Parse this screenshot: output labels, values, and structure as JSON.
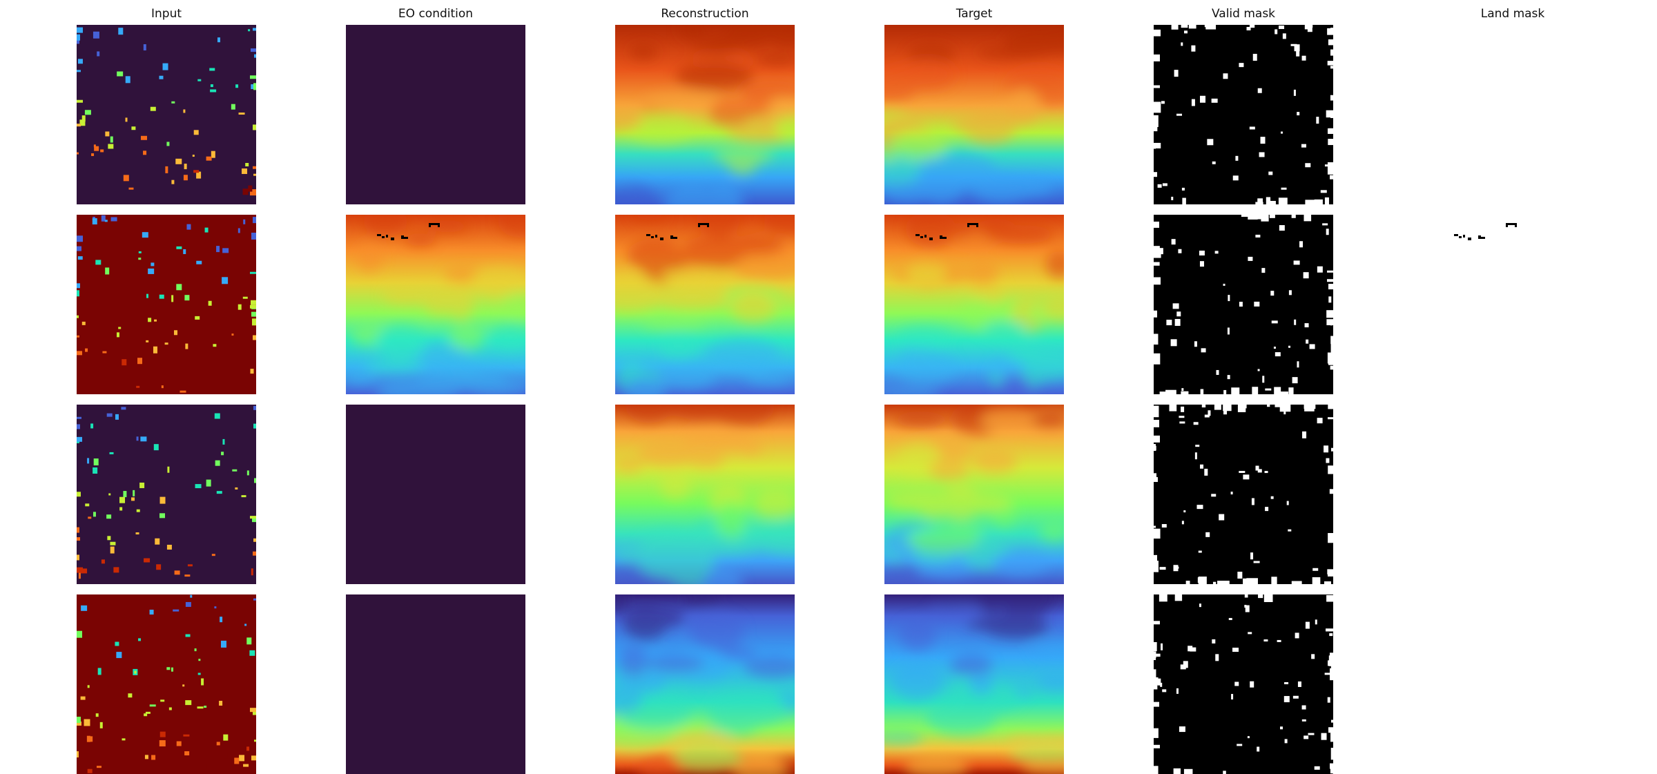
{
  "figure": {
    "columns": [
      "Input",
      "EO condition",
      "Reconstruction",
      "Target",
      "Valid mask",
      "Land mask"
    ],
    "rows": 4
  },
  "colors": {
    "eo_empty": "#30123b",
    "input_fill_low": "#30123b",
    "input_fill_high": "#7a0403",
    "mask_black": "#000000",
    "mask_white": "#ffffff",
    "colormap": "turbo"
  },
  "panels": [
    {
      "row": 0,
      "input_fill": "low",
      "eo_empty": true,
      "field": "warm_top_cool_bottom",
      "land": false
    },
    {
      "row": 1,
      "input_fill": "high",
      "eo_empty": false,
      "field": "swirl_mid",
      "land": true
    },
    {
      "row": 2,
      "input_fill": "low",
      "eo_empty": true,
      "field": "green_mix",
      "land": false
    },
    {
      "row": 3,
      "input_fill": "high",
      "eo_empty": true,
      "field": "cool_top_warm_bottom",
      "land": false
    }
  ]
}
